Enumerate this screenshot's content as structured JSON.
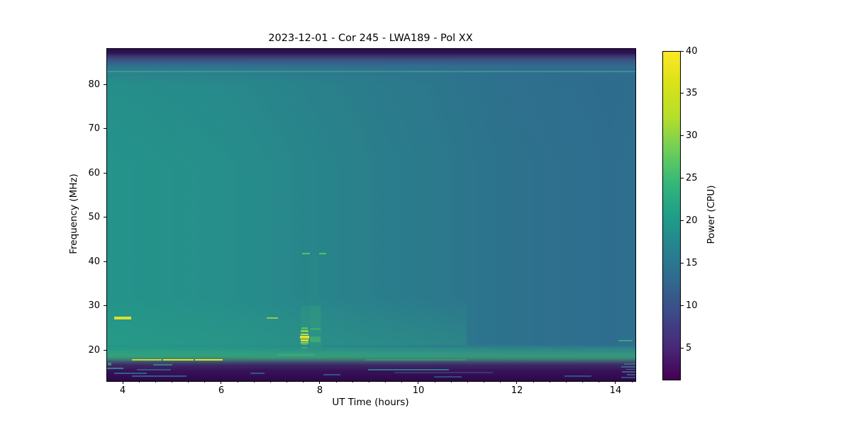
{
  "figure": {
    "background_color": "#ffffff",
    "text_color": "#000000"
  },
  "chart_data": {
    "type": "heatmap",
    "title": "2023-12-01 - Cor 245 - LWA189 - Pol XX",
    "xlabel": "UT Time (hours)",
    "ylabel": "Frequency (MHz)",
    "colorbar_label": "Power (CPU)",
    "colormap": "viridis",
    "x_range_hours": [
      3.669,
      14.389
    ],
    "y_range_mhz": [
      13.15,
      88.25
    ],
    "x_ticks": [
      4,
      6,
      8,
      10,
      12,
      14
    ],
    "x_minor_tick_interval_hours": 0.3333,
    "y_ticks": [
      20,
      30,
      40,
      50,
      60,
      70,
      80
    ],
    "colorbar_range": [
      1.4,
      40
    ],
    "colorbar_ticks": [
      5,
      10,
      15,
      20,
      25,
      30,
      35,
      40
    ],
    "colormap_stops": [
      "#440154",
      "#482878",
      "#3e4989",
      "#31688e",
      "#26828e",
      "#1f9e89",
      "#35b779",
      "#6ece58",
      "#b5de2b",
      "#d8e219",
      "#fde725"
    ],
    "background_power_description": "Smooth galactic background: ~22 CPU (green-teal) at 3.7 h fading to ~15 CPU (steel blue) by 14.4 h; dark purple bands (<5 CPU) above ~86 MHz and below ~17 MHz; bright green band 18-21 MHz",
    "features": [
      {
        "name": "rfi-line-83mhz",
        "t": [
          3.669,
          14.389
        ],
        "f": [
          82.9,
          83.35
        ],
        "c": "#4fb3a5",
        "o": 0.45
      },
      {
        "name": "burst-27mhz-left",
        "t": [
          3.81,
          4.16
        ],
        "f": [
          27.15,
          27.65
        ],
        "c": "#d8e030",
        "o": 1
      },
      {
        "name": "burst-27mhz-7h",
        "t": [
          6.9,
          7.14
        ],
        "f": [
          27.2,
          27.6
        ],
        "c": "#93d34b",
        "o": 0.9
      },
      {
        "name": "rfi-18mhz-a",
        "t": [
          4.17,
          4.77
        ],
        "f": [
          17.75,
          18.15
        ],
        "c": "#c8de2b",
        "o": 0.95
      },
      {
        "name": "rfi-18mhz-b",
        "t": [
          4.8,
          5.42
        ],
        "f": [
          17.75,
          18.15
        ],
        "c": "#e0e222",
        "o": 1
      },
      {
        "name": "rfi-18mhz-c",
        "t": [
          5.45,
          6.02
        ],
        "f": [
          17.75,
          18.15
        ],
        "c": "#e9e41b",
        "o": 1
      },
      {
        "name": "line-19mhz",
        "t": [
          7.12,
          7.87
        ],
        "f": [
          18.85,
          19.2
        ],
        "c": "#3fae77",
        "o": 0.9
      },
      {
        "name": "burst-halo-upper",
        "t": [
          7.6,
          7.99
        ],
        "f": [
          25.4,
          30.2
        ],
        "c": "#3fae77",
        "o": 0.18
      },
      {
        "name": "burst-halo-tall",
        "t": [
          7.75,
          7.97
        ],
        "f": [
          30.2,
          41.5
        ],
        "c": "#35a17b",
        "o": 0.1
      },
      {
        "name": "burst-column",
        "t": [
          7.78,
          8.01
        ],
        "f": [
          20.6,
          30.2
        ],
        "c": "#35a17b",
        "o": 0.28
      },
      {
        "name": "burst-stripe-1",
        "t": [
          7.61,
          7.74
        ],
        "f": [
          24.8,
          25.3
        ],
        "c": "#55c267",
        "o": 0.9
      },
      {
        "name": "burst-stripe-2",
        "t": [
          7.6,
          7.76
        ],
        "f": [
          24.2,
          24.65
        ],
        "c": "#8ed04f",
        "o": 0.95
      },
      {
        "name": "burst-stripe-3",
        "t": [
          7.6,
          7.76
        ],
        "f": [
          23.5,
          23.9
        ],
        "c": "#bcdc3f",
        "o": 1
      },
      {
        "name": "burst-stripe-4",
        "t": [
          7.59,
          7.77
        ],
        "f": [
          22.7,
          23.4
        ],
        "c": "#e0e22d",
        "o": 1
      },
      {
        "name": "burst-stripe-5",
        "t": [
          7.6,
          7.76
        ],
        "f": [
          22.1,
          22.6
        ],
        "c": "#d2e036",
        "o": 1
      },
      {
        "name": "burst-stripe-6",
        "t": [
          7.6,
          7.75
        ],
        "f": [
          21.6,
          21.95
        ],
        "c": "#a0d648",
        "o": 0.95
      },
      {
        "name": "burst-stripe-7",
        "t": [
          7.61,
          7.74
        ],
        "f": [
          21.25,
          21.55
        ],
        "c": "#63c563",
        "o": 0.9
      },
      {
        "name": "burst-stripe-8",
        "t": [
          7.62,
          7.73
        ],
        "f": [
          20.5,
          20.9
        ],
        "c": "#3fae77",
        "o": 0.85
      },
      {
        "name": "burst-col-stripe-1",
        "t": [
          7.78,
          8.0
        ],
        "f": [
          24.6,
          25.2
        ],
        "c": "#4cbd6d",
        "o": 0.5
      },
      {
        "name": "burst-col-stripe-2",
        "t": [
          7.78,
          8.0
        ],
        "f": [
          22.0,
          23.2
        ],
        "c": "#55c267",
        "o": 0.45
      },
      {
        "name": "dash-42mhz-a",
        "t": [
          7.63,
          7.78
        ],
        "f": [
          41.75,
          42.1
        ],
        "c": "#4ec766",
        "o": 0.95
      },
      {
        "name": "dash-42mhz-b",
        "t": [
          7.97,
          8.12
        ],
        "f": [
          41.75,
          42.1
        ],
        "c": "#4ec766",
        "o": 0.95
      },
      {
        "name": "dash-22mhz-right",
        "t": [
          14.04,
          14.33
        ],
        "f": [
          22.15,
          22.5
        ],
        "c": "#39aa7b",
        "o": 0.9
      },
      {
        "name": "teal-line-16mhz",
        "t": [
          8.96,
          10.6
        ],
        "f": [
          15.6,
          15.95
        ],
        "c": "#338d8a",
        "o": 0.8
      },
      {
        "name": "green-line-18mhz",
        "t": [
          8.92,
          10.95
        ],
        "f": [
          17.85,
          18.15
        ],
        "c": "#3da273",
        "o": 0.6
      },
      {
        "name": "low-dash-1",
        "t": [
          3.67,
          4.0
        ],
        "f": [
          15.9,
          16.25
        ],
        "c": "#36948d",
        "o": 0.85
      },
      {
        "name": "low-dash-2",
        "t": [
          3.68,
          3.76
        ],
        "f": [
          16.6,
          17.3
        ],
        "c": "#36948d",
        "o": 0.9
      },
      {
        "name": "low-dash-3",
        "t": [
          3.82,
          4.47
        ],
        "f": [
          14.75,
          15.05
        ],
        "c": "#31688e",
        "o": 0.9
      },
      {
        "name": "low-dash-4",
        "t": [
          4.17,
          5.28
        ],
        "f": [
          14.1,
          14.4
        ],
        "c": "#31688e",
        "o": 0.85
      },
      {
        "name": "low-dash-5",
        "t": [
          4.28,
          4.97
        ],
        "f": [
          15.55,
          15.85
        ],
        "c": "#31688e",
        "o": 0.8
      },
      {
        "name": "low-dash-6",
        "t": [
          4.6,
          5.0
        ],
        "f": [
          16.7,
          17.05
        ],
        "c": "#36948d",
        "o": 0.8
      },
      {
        "name": "low-dash-7",
        "t": [
          6.58,
          6.87
        ],
        "f": [
          14.75,
          15.05
        ],
        "c": "#31688e",
        "o": 0.8
      },
      {
        "name": "low-dash-8",
        "t": [
          8.06,
          8.4
        ],
        "f": [
          14.4,
          14.7
        ],
        "c": "#31688e",
        "o": 0.75
      },
      {
        "name": "low-dash-9",
        "t": [
          9.5,
          11.5
        ],
        "f": [
          14.95,
          15.25
        ],
        "c": "#355e8a",
        "o": 0.5
      },
      {
        "name": "low-dash-10",
        "t": [
          10.3,
          10.87
        ],
        "f": [
          13.95,
          14.25
        ],
        "c": "#31688e",
        "o": 0.7
      },
      {
        "name": "low-dash-11",
        "t": [
          12.95,
          13.5
        ],
        "f": [
          14.1,
          14.4
        ],
        "c": "#31688e",
        "o": 0.75
      },
      {
        "name": "edge-dash-1",
        "t": [
          14.16,
          14.39
        ],
        "f": [
          16.85,
          17.15
        ],
        "c": "#3f6c8f",
        "o": 0.9
      },
      {
        "name": "edge-dash-2",
        "t": [
          14.1,
          14.39
        ],
        "f": [
          16.25,
          16.55
        ],
        "c": "#3f6c8f",
        "o": 0.85
      },
      {
        "name": "edge-dash-3",
        "t": [
          14.2,
          14.39
        ],
        "f": [
          15.65,
          15.95
        ],
        "c": "#46788f",
        "o": 0.9
      },
      {
        "name": "edge-dash-4",
        "t": [
          14.12,
          14.39
        ],
        "f": [
          15.05,
          15.35
        ],
        "c": "#3f6c8f",
        "o": 0.85
      },
      {
        "name": "edge-dash-5",
        "t": [
          14.22,
          14.39
        ],
        "f": [
          14.45,
          14.75
        ],
        "c": "#3f6c8f",
        "o": 0.8
      },
      {
        "name": "edge-dash-6",
        "t": [
          14.1,
          14.39
        ],
        "f": [
          13.85,
          14.15
        ],
        "c": "#35608c",
        "o": 0.8
      }
    ]
  }
}
